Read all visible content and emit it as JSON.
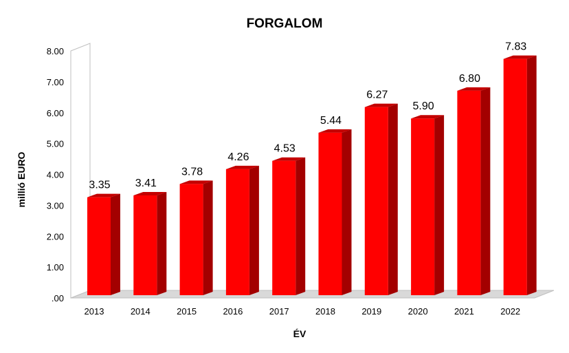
{
  "chart_data": {
    "type": "bar",
    "title": "FORGALOM",
    "xlabel": "ÉV",
    "ylabel": "millió EURO",
    "categories": [
      "2013",
      "2014",
      "2015",
      "2016",
      "2017",
      "2018",
      "2019",
      "2020",
      "2021",
      "2022"
    ],
    "values": [
      3.35,
      3.41,
      3.78,
      4.26,
      4.53,
      5.44,
      6.27,
      5.9,
      6.8,
      7.83
    ],
    "data_labels": [
      "3.35",
      "3.41",
      "3.78",
      "4.26",
      "4.53",
      "5.44",
      "6.27",
      "5.90",
      "6.80",
      "7.83"
    ],
    "y_ticks": [
      ".00",
      "1.00",
      "2.00",
      "3.00",
      "4.00",
      "5.00",
      "6.00",
      "7.00",
      "8.00"
    ],
    "ylim": [
      0,
      8
    ],
    "grid": false,
    "legend": "none",
    "style": "3d-column",
    "colors": {
      "bar_front": "#ff0000",
      "bar_side": "#a30000",
      "bar_top": "#c40000",
      "floor": "#d9d9d9"
    }
  }
}
